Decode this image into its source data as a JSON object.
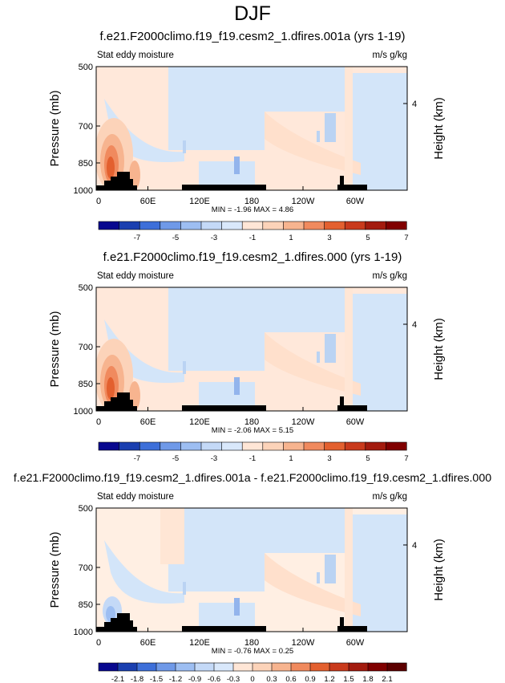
{
  "page": {
    "season": "DJF"
  },
  "chart_data": [
    {
      "type": "heatmap",
      "title": "f.e21.F2000climo.f19_f19.cesm2_1.dfires.001a (yrs 1-19)",
      "left_label": "Stat eddy moisture",
      "right_label": "m/s g/kg",
      "ylabel": "Pressure (mb)",
      "y2label": "Height (km)",
      "y_ticks": [
        "500",
        "700",
        "850",
        "1000"
      ],
      "y2_ticks": [
        "4"
      ],
      "x_ticks": [
        "0",
        "60E",
        "120E",
        "180",
        "120W",
        "60W"
      ],
      "stats": "MIN = -1.96  MAX =  4.86",
      "colorbar_labels": [
        "-7",
        "-5",
        "-3",
        "-1",
        "1",
        "3",
        "5",
        "7"
      ],
      "colorbar_colors": [
        "#08088f",
        "#1a3fb0",
        "#3d6fd9",
        "#6f99e8",
        "#9dbef2",
        "#c4d9f7",
        "#d9e8fb",
        "#ffe6d6",
        "#fcd3b9",
        "#f7b48f",
        "#f08a5e",
        "#e3602f",
        "#c93a1c",
        "#a31b0e",
        "#800000"
      ],
      "hotspot": "strong"
    },
    {
      "type": "heatmap",
      "title": "f.e21.F2000climo.f19_f19.cesm2_1.dfires.000 (yrs 1-19)",
      "left_label": "Stat eddy moisture",
      "right_label": "m/s g/kg",
      "ylabel": "Pressure (mb)",
      "y2label": "Height (km)",
      "y_ticks": [
        "500",
        "700",
        "850",
        "1000"
      ],
      "y2_ticks": [
        "4"
      ],
      "x_ticks": [
        "0",
        "60E",
        "120E",
        "180",
        "120W",
        "60W"
      ],
      "stats": "MIN = -2.06  MAX =  5.15",
      "colorbar_labels": [
        "-7",
        "-5",
        "-3",
        "-1",
        "1",
        "3",
        "5",
        "7"
      ],
      "colorbar_colors": [
        "#08088f",
        "#1a3fb0",
        "#3d6fd9",
        "#6f99e8",
        "#9dbef2",
        "#c4d9f7",
        "#d9e8fb",
        "#ffe6d6",
        "#fcd3b9",
        "#f7b48f",
        "#f08a5e",
        "#e3602f",
        "#c93a1c",
        "#a31b0e",
        "#800000"
      ],
      "hotspot": "strong"
    },
    {
      "type": "heatmap",
      "title": "f.e21.F2000climo.f19_f19.cesm2_1.dfires.001a - f.e21.F2000climo.f19_f19.cesm2_1.dfires.000",
      "left_label": "Stat eddy moisture",
      "right_label": "m/s g/kg",
      "ylabel": "Pressure (mb)",
      "y2label": "Height (km)",
      "y_ticks": [
        "500",
        "700",
        "850",
        "1000"
      ],
      "y2_ticks": [
        "4"
      ],
      "x_ticks": [
        "0",
        "60E",
        "120E",
        "180",
        "120W",
        "60W"
      ],
      "stats": "MIN = -0.76  MAX =  0.25",
      "colorbar_labels": [
        "-2.1",
        "-1.8",
        "-1.5",
        "-1.2",
        "-0.9",
        "-0.6",
        "-0.3",
        "0",
        "0.3",
        "0.6",
        "0.9",
        "1.2",
        "1.5",
        "1.8",
        "2.1"
      ],
      "colorbar_colors": [
        "#08088f",
        "#1a3fb0",
        "#3d6fd9",
        "#6f99e8",
        "#9dbef2",
        "#c4d9f7",
        "#d9e8fb",
        "#ffe6d6",
        "#fcd3b9",
        "#f7b48f",
        "#f08a5e",
        "#e3602f",
        "#c93a1c",
        "#a31b0e",
        "#800000",
        "#5c0000"
      ],
      "hotspot": "weak"
    }
  ]
}
